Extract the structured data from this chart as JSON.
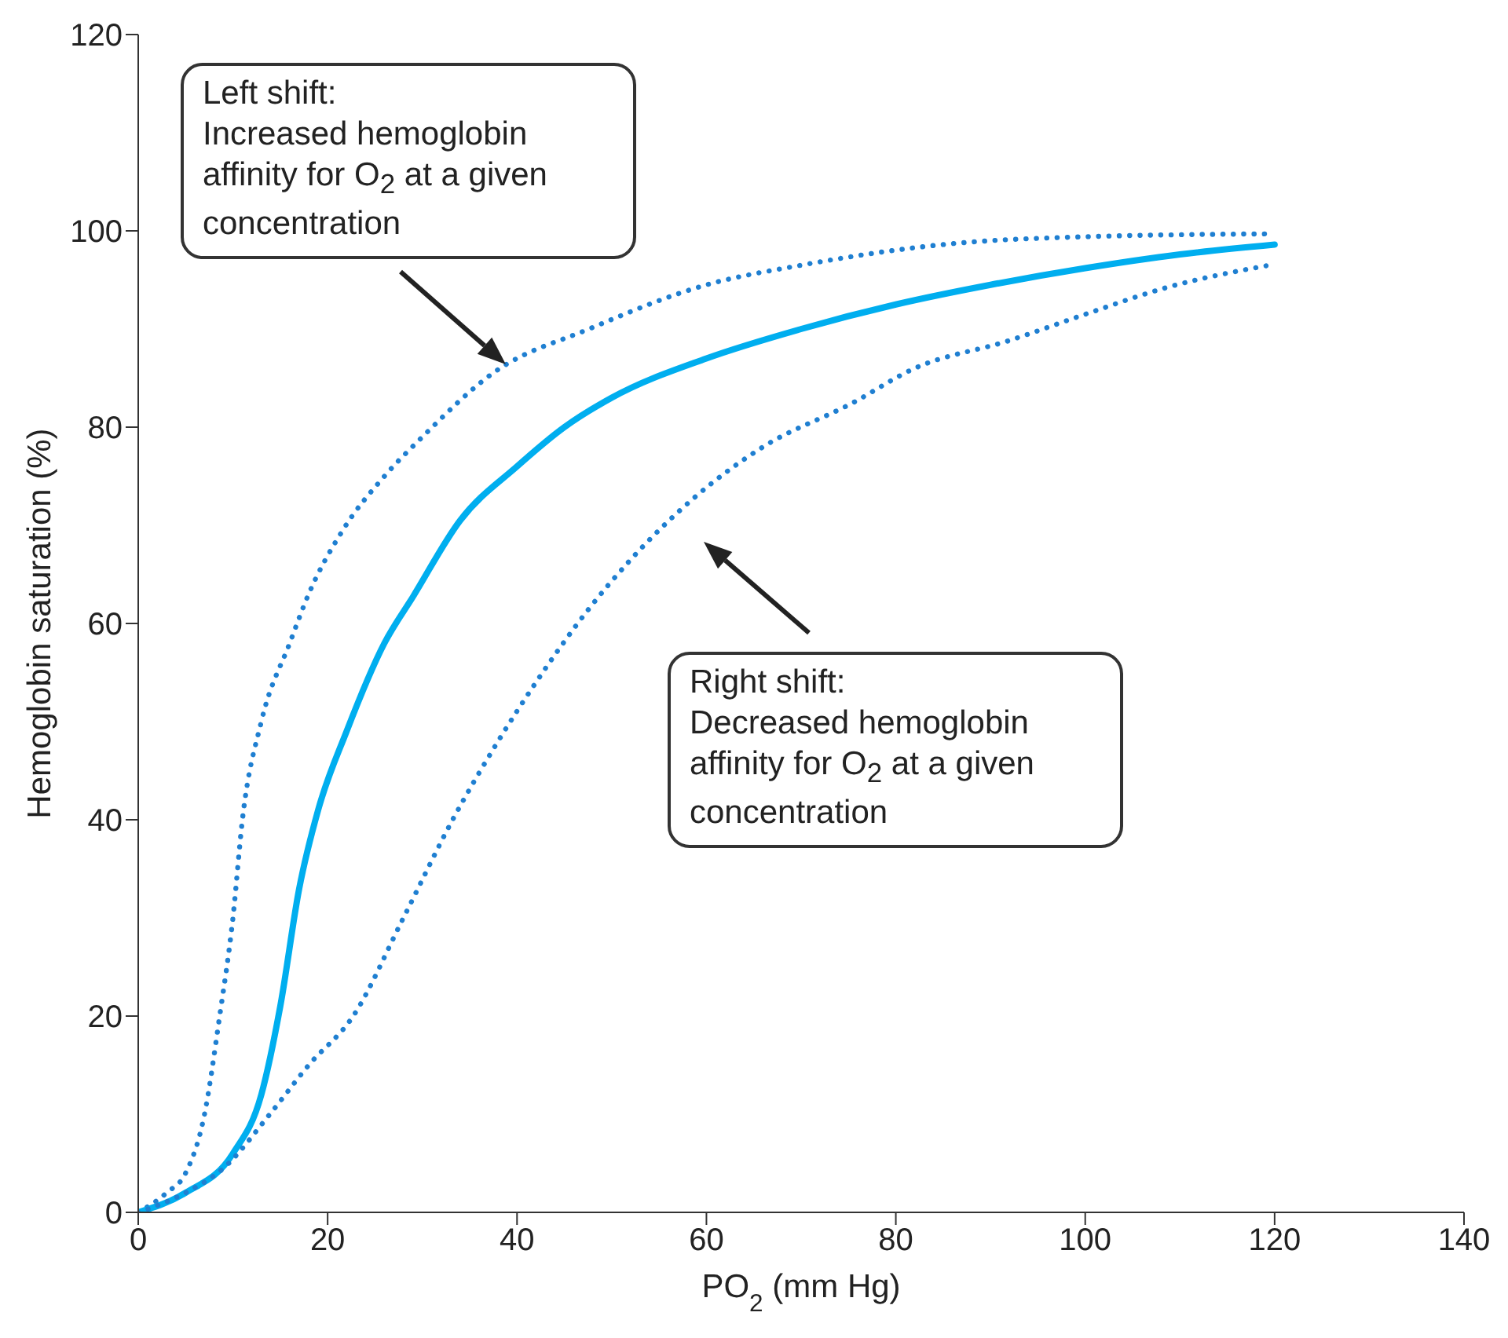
{
  "chart_data": {
    "type": "line",
    "xlabel": "PO$_{2}$ (mm Hg)",
    "ylabel": "Hemoglobin saturation (%)",
    "xlim": [
      0,
      140
    ],
    "xticks": [
      0,
      20,
      40,
      60,
      80,
      100,
      120,
      140
    ],
    "ylim": [
      0,
      120
    ],
    "yticks": [
      0,
      20,
      40,
      60,
      80,
      100,
      120
    ],
    "marker": "none",
    "series": [
      {
        "color": "#1f7fd1",
        "line_style": "dotted",
        "x": [
          0,
          3,
          5,
          7,
          8.6,
          10,
          11,
          13,
          16,
          18,
          21.6,
          26,
          30,
          37.6,
          47.6,
          60,
          70,
          86,
          100,
          120
        ],
        "values": [
          0,
          2,
          4,
          10,
          20,
          30,
          40,
          50,
          58,
          63,
          69.5,
          75,
          79,
          85.6,
          90,
          94.5,
          96.5,
          98.7,
          99.4,
          99.7
        ]
      },
      {
        "color": "#00aeef",
        "line_style": "solid",
        "x": [
          0,
          5,
          10,
          13,
          15,
          17,
          19,
          22,
          26,
          29,
          34,
          40,
          45,
          50,
          60,
          70,
          80,
          90,
          100,
          110,
          120
        ],
        "values": [
          0,
          2,
          6,
          12,
          21,
          33,
          41,
          49,
          58,
          62.7,
          70.5,
          76,
          80,
          83,
          87,
          90,
          92.5,
          94.5,
          96.2,
          97.6,
          98.6
        ]
      },
      {
        "color": "#1f7fd1",
        "line_style": "dotted",
        "x": [
          0,
          5,
          9,
          13.9,
          18,
          22.7,
          28,
          33.2,
          38,
          42,
          47.6,
          52,
          58.7,
          66,
          75.3,
          82,
          91.9,
          100,
          108.5,
          120
        ],
        "values": [
          0,
          2,
          4.5,
          10,
          15,
          20,
          30,
          40,
          48,
          54,
          61.5,
          66.5,
          72.8,
          78,
          82.4,
          86,
          88.8,
          91.5,
          94.2,
          96.6
        ]
      }
    ],
    "annotations": [
      "Left shift:\nIncreased hemoglobin affinity for O$_{2}$ at a given concentration",
      "Right shift:\nDecreased hemoglobin affinity for O$_{2}$ at a given concentration"
    ]
  }
}
